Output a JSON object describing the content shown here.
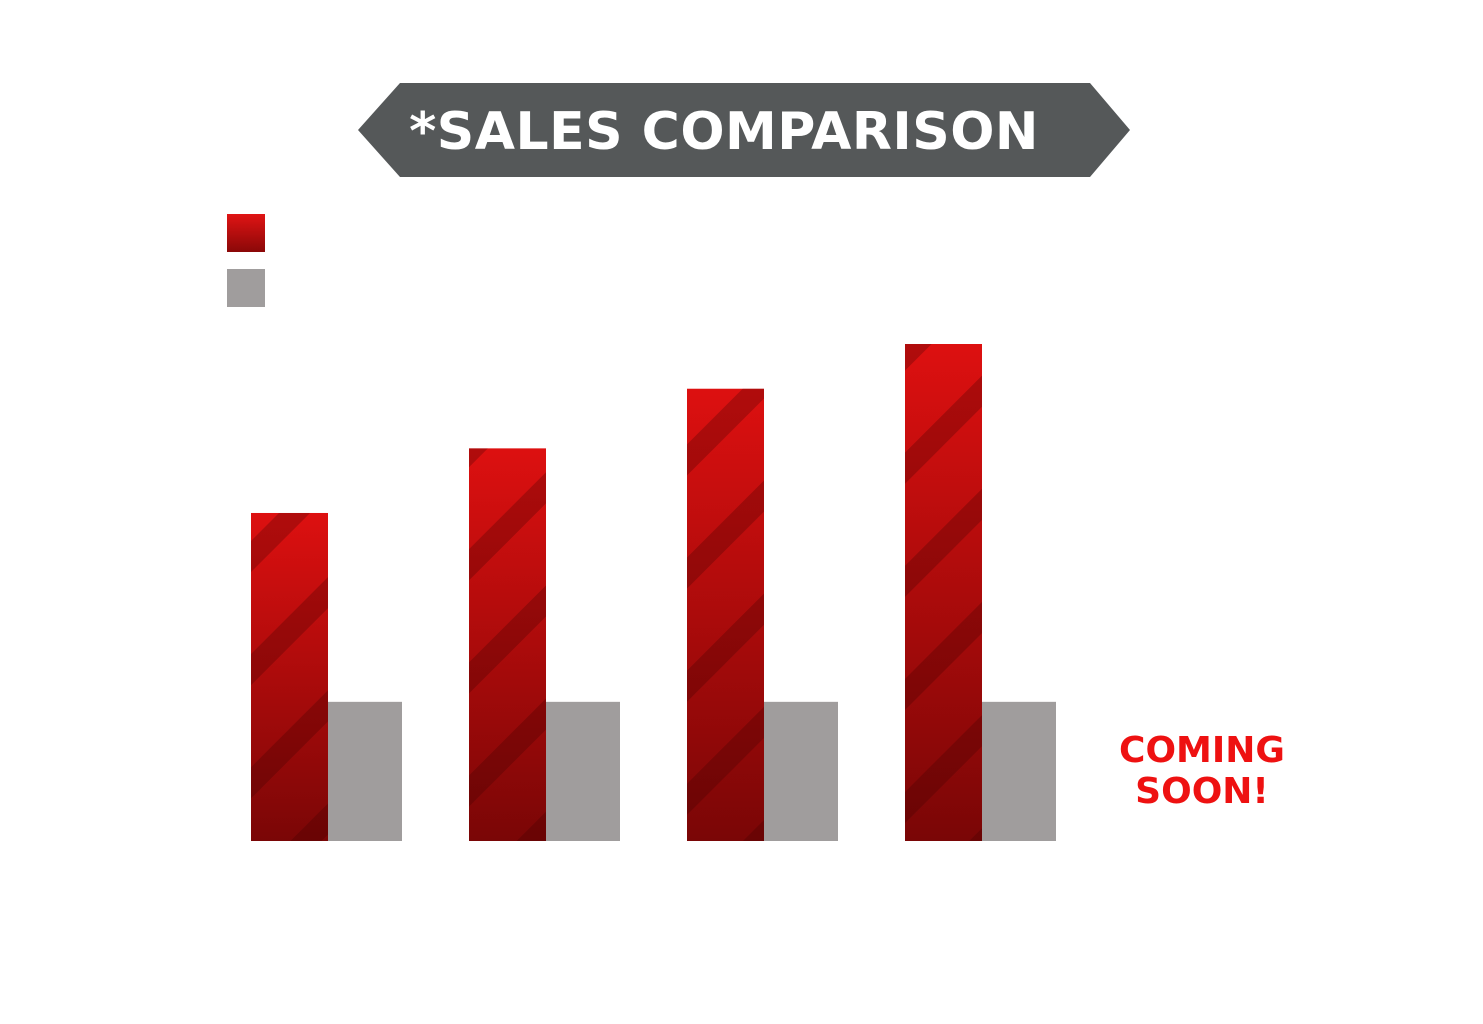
{
  "chart_data": {
    "type": "bar",
    "title": "*SALES COMPARISON",
    "categories": [
      "",
      "",
      "",
      ""
    ],
    "series": [
      {
        "color": "#cc1111",
        "values": [
          0.66,
          0.79,
          0.91,
          1.0
        ]
      },
      {
        "color": "#a09d9d",
        "values": [
          0.28,
          0.28,
          0.28,
          0.28
        ]
      }
    ],
    "annotation": [
      "COMING",
      "SOON!"
    ],
    "xlabel": "",
    "ylabel": "",
    "ylim": [
      0,
      1
    ],
    "grid": false,
    "legend": "top-left",
    "colors": {
      "banner": "#555859",
      "primary_dark": "#7a0606",
      "primary_light": "#dd1010",
      "secondary": "#a09d9d",
      "annotation": "#ee1111"
    }
  }
}
